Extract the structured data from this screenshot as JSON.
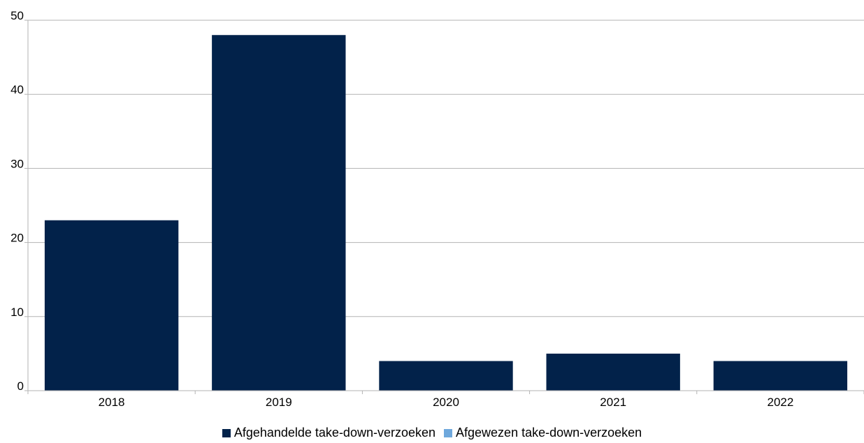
{
  "chart_data": {
    "type": "bar",
    "categories": [
      "2018",
      "2019",
      "2020",
      "2021",
      "2022"
    ],
    "series": [
      {
        "name": "Afgehandelde take-down-verzoeken",
        "color": "#02224A",
        "values": [
          23,
          48,
          4,
          5,
          4
        ]
      },
      {
        "name": "Afgewezen take-down-verzoeken",
        "color": "#6FA8DC",
        "values": [
          0,
          0,
          0,
          0,
          0
        ]
      }
    ],
    "yticks": [
      0,
      10,
      20,
      30,
      40,
      50
    ],
    "ylim": [
      0,
      50
    ],
    "grid": true,
    "legend_position": "bottom",
    "title": "",
    "xlabel": "",
    "ylabel": ""
  }
}
